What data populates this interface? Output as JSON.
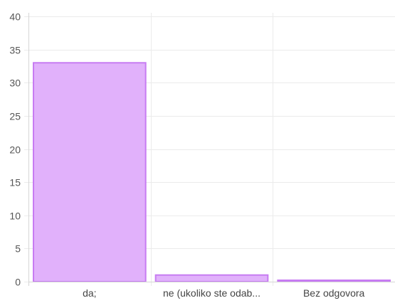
{
  "chart_data": {
    "type": "bar",
    "categories": [
      "da;",
      "ne (ukoliko ste odab...",
      "Bez odgovora"
    ],
    "values": [
      33,
      1,
      0
    ],
    "ylim": [
      0,
      40
    ],
    "yticks": [
      0,
      5,
      10,
      15,
      20,
      25,
      30,
      35,
      40
    ],
    "grid": true,
    "legend": "none",
    "colors": {
      "bar_fill": "#e1b1fb",
      "bar_stroke": "#c77cf2",
      "grid": "#ebebeb",
      "axis": "#d6d6d6"
    }
  }
}
